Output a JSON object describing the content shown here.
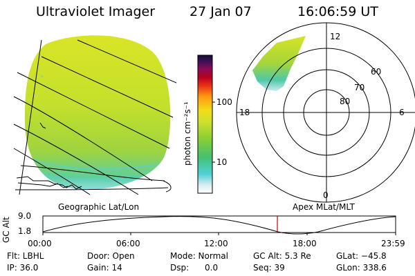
{
  "header": {
    "instrument": "Ultraviolet Imager",
    "date": "27 Jan 07",
    "time": "16:06:59 UT"
  },
  "colorbar": {
    "unit_label": "photon cm⁻²s⁻¹",
    "ticks": [
      "100",
      "10"
    ]
  },
  "polar_plot": {
    "mlt_labels": {
      "top": "12",
      "left": "18",
      "right": "6",
      "bottom": "0"
    },
    "lat_labels": [
      "60",
      "70",
      "80"
    ]
  },
  "panel_labels": {
    "left": "Geographic Lat/Lon",
    "right": "Apex MLat/MLT"
  },
  "altitude_plot": {
    "axis_label": "GC Alt",
    "y_ticks": [
      "9.0",
      "1.8"
    ],
    "x_ticks": [
      "00:00",
      "06:00",
      "12:00",
      "18:00",
      "23:59"
    ],
    "marker_color": "#d00000"
  },
  "info": {
    "filter": "Flt: LBHL",
    "ip": "IP: 36.0",
    "door": "Door: Open",
    "gain": "Gain: 14",
    "mode": "Mode: Normal",
    "dsp": "Dsp:      0.0",
    "gc_alt": "GC Alt: 5.3 Re",
    "seq": "Seq: 39",
    "glat": "GLat: −45.8",
    "glon": "GLon: 338.6"
  }
}
